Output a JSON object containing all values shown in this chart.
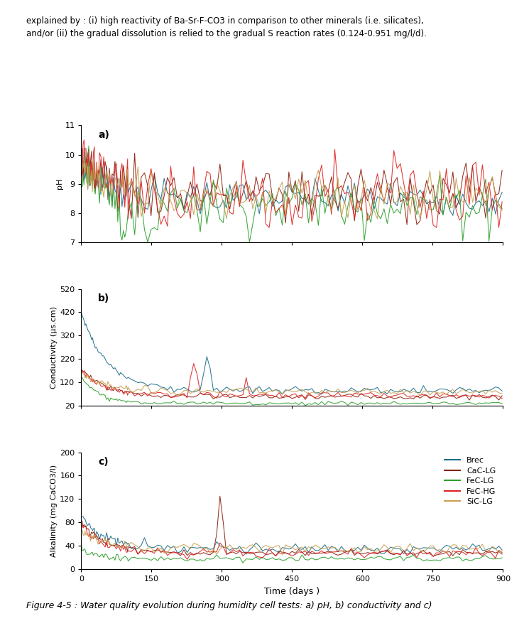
{
  "title_text": "Figure 4-5 : Water quality evolution during humidity cell tests: a) pH, b) conductivity and c)",
  "header_line1": "explained by : (i) high reactivity of Ba-Sr-F-CO3 in comparison to other minerals (i.e. silicates),",
  "header_line2": "and/or (ii) the gradual dissolution is relied to the gradual S reaction rates (0.124-0.951 mg/l/d).",
  "series_names": [
    "Brec",
    "CaC-LG",
    "FeC-LG",
    "FeC-HG",
    "SiC-LG"
  ],
  "colors": {
    "Brec": "#1a6e8a",
    "CaC-LG": "#8B2010",
    "FeC-LG": "#2ca02c",
    "FeC-HG": "#dd2222",
    "SiC-LG": "#c8a050"
  },
  "subplot_labels": [
    "a)",
    "b)",
    "c)"
  ],
  "ph_ylim": [
    7,
    11
  ],
  "ph_yticks": [
    7,
    8,
    9,
    10,
    11
  ],
  "ph_ylabel": "pH",
  "cond_ylim": [
    20,
    520
  ],
  "cond_yticks": [
    20,
    120,
    220,
    320,
    420,
    520
  ],
  "cond_ylabel": "Conductivity (µs.cm)",
  "alk_ylim": [
    0,
    200
  ],
  "alk_yticks": [
    0,
    40,
    80,
    120,
    160,
    200
  ],
  "alk_ylabel": "Alkalinity (mg CaCO3/l)",
  "xlabel": "Time (days )",
  "xlim": [
    0,
    900
  ],
  "xticks": [
    0,
    150,
    300,
    450,
    600,
    750,
    900
  ]
}
